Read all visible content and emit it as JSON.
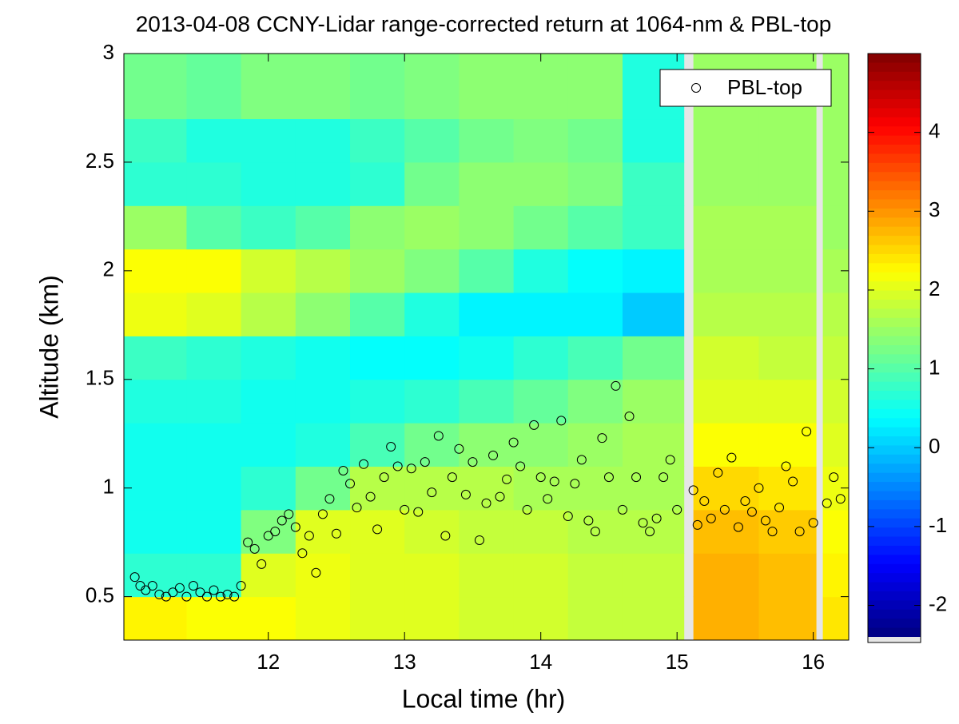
{
  "chart_data": {
    "type": "heatmap",
    "title": "2013-04-08 CCNY-Lidar range-corrected return at 1064-nm & PBL-top",
    "x_label": "Local time (hr)",
    "y_label": "Altitude (km)",
    "xlim": [
      10.94,
      16.26
    ],
    "ylim": [
      0.3,
      3
    ],
    "xticks": [
      12,
      13,
      14,
      15,
      16
    ],
    "yticks": [
      0.5,
      1,
      1.5,
      2,
      2.5,
      3
    ],
    "colormap": "jet",
    "clim": [
      -2.4,
      5
    ],
    "cticks": [
      -2,
      -1,
      0,
      1,
      2,
      3,
      4
    ],
    "legend_position": "upper right",
    "x_edges": [
      10.94,
      11.4,
      11.8,
      12.2,
      12.6,
      13.0,
      13.4,
      13.8,
      14.2,
      14.6,
      15.05,
      15.12,
      15.6,
      16.02,
      16.07,
      16.26
    ],
    "y_edges": [
      0.3,
      0.5,
      0.7,
      0.9,
      1.1,
      1.3,
      1.5,
      1.7,
      1.9,
      2.1,
      2.3,
      2.5,
      2.7,
      3.0
    ],
    "z": [
      [
        2.3,
        2.2,
        2.2,
        2.1,
        2.0,
        2.0,
        1.9,
        1.9,
        1.8,
        1.8,
        null,
        2.8,
        2.7,
        null,
        2.4
      ],
      [
        0.7,
        0.7,
        2.0,
        2.1,
        2.0,
        2.0,
        1.9,
        1.9,
        1.8,
        1.8,
        null,
        2.8,
        2.7,
        null,
        2.3
      ],
      [
        0.5,
        0.5,
        1.3,
        2.0,
        2.0,
        1.9,
        1.8,
        1.8,
        1.7,
        1.7,
        null,
        2.7,
        2.6,
        null,
        2.2
      ],
      [
        0.5,
        0.5,
        0.7,
        1.2,
        1.7,
        1.7,
        1.7,
        1.6,
        1.6,
        1.6,
        null,
        2.5,
        2.4,
        null,
        2.1
      ],
      [
        0.5,
        0.5,
        0.5,
        0.6,
        0.9,
        1.2,
        1.4,
        1.4,
        1.5,
        1.6,
        null,
        2.2,
        2.2,
        null,
        2.0
      ],
      [
        0.6,
        0.6,
        0.5,
        0.5,
        0.6,
        0.7,
        0.9,
        1.1,
        1.3,
        1.5,
        null,
        2.0,
        2.0,
        null,
        1.9
      ],
      [
        0.8,
        0.7,
        0.6,
        0.5,
        0.4,
        0.4,
        0.5,
        0.7,
        0.9,
        1.2,
        null,
        1.9,
        1.8,
        null,
        1.8
      ],
      [
        2.1,
        2.0,
        1.7,
        1.4,
        1.0,
        0.6,
        0.3,
        0.3,
        0.3,
        0.0,
        null,
        1.7,
        1.7,
        null,
        1.7
      ],
      [
        2.2,
        2.2,
        1.9,
        1.7,
        1.5,
        1.3,
        1.0,
        0.6,
        0.4,
        0.3,
        null,
        1.6,
        1.6,
        null,
        1.6
      ],
      [
        1.5,
        1.0,
        0.8,
        1.0,
        1.4,
        1.5,
        1.4,
        1.2,
        1.0,
        0.8,
        null,
        1.6,
        1.6,
        null,
        1.5
      ],
      [
        0.7,
        0.7,
        0.6,
        0.6,
        0.7,
        1.2,
        1.4,
        1.4,
        1.3,
        0.8,
        null,
        1.5,
        1.5,
        null,
        1.5
      ],
      [
        0.8,
        0.6,
        0.6,
        0.6,
        0.8,
        1.0,
        1.2,
        1.3,
        1.2,
        0.6,
        null,
        1.5,
        1.5,
        null,
        1.5
      ],
      [
        1.2,
        1.1,
        1.3,
        1.3,
        1.2,
        1.3,
        1.4,
        1.4,
        1.4,
        0.6,
        null,
        1.5,
        1.5,
        null,
        1.5
      ]
    ],
    "series": [
      {
        "name": "PBL-top",
        "color": "#000000",
        "x": [
          11.02,
          11.06,
          11.1,
          11.15,
          11.2,
          11.25,
          11.3,
          11.35,
          11.4,
          11.45,
          11.5,
          11.55,
          11.6,
          11.65,
          11.7,
          11.75,
          11.8,
          11.85,
          11.9,
          11.95,
          12.0,
          12.05,
          12.1,
          12.15,
          12.2,
          12.25,
          12.3,
          12.35,
          12.4,
          12.45,
          12.5,
          12.55,
          12.6,
          12.65,
          12.7,
          12.75,
          12.8,
          12.85,
          12.9,
          12.95,
          13.0,
          13.05,
          13.1,
          13.15,
          13.2,
          13.25,
          13.3,
          13.35,
          13.4,
          13.45,
          13.5,
          13.55,
          13.6,
          13.65,
          13.7,
          13.75,
          13.8,
          13.85,
          13.9,
          13.95,
          14.0,
          14.05,
          14.1,
          14.15,
          14.2,
          14.25,
          14.3,
          14.35,
          14.4,
          14.45,
          14.5,
          14.55,
          14.6,
          14.65,
          14.7,
          14.75,
          14.8,
          14.85,
          14.9,
          14.95,
          15.0,
          15.12,
          15.15,
          15.2,
          15.25,
          15.3,
          15.35,
          15.4,
          15.45,
          15.5,
          15.55,
          15.6,
          15.65,
          15.7,
          15.75,
          15.8,
          15.85,
          15.9,
          15.95,
          16.0,
          16.1,
          16.15,
          16.2
        ],
        "values": [
          0.59,
          0.55,
          0.53,
          0.55,
          0.51,
          0.5,
          0.52,
          0.54,
          0.5,
          0.55,
          0.52,
          0.5,
          0.53,
          0.5,
          0.51,
          0.5,
          0.55,
          0.75,
          0.72,
          0.65,
          0.78,
          0.8,
          0.85,
          0.88,
          0.82,
          0.7,
          0.78,
          0.61,
          0.88,
          0.95,
          0.79,
          1.08,
          1.02,
          0.91,
          1.11,
          0.96,
          0.81,
          1.05,
          1.19,
          1.1,
          0.9,
          1.09,
          0.89,
          1.12,
          0.98,
          1.24,
          0.78,
          1.05,
          1.18,
          0.97,
          1.12,
          0.76,
          0.93,
          1.15,
          0.96,
          1.04,
          1.21,
          1.1,
          0.9,
          1.29,
          1.05,
          0.95,
          1.03,
          1.31,
          0.87,
          1.02,
          1.13,
          0.85,
          0.8,
          1.23,
          1.05,
          1.47,
          0.9,
          1.33,
          1.05,
          0.84,
          0.8,
          0.86,
          1.05,
          1.13,
          0.9,
          0.99,
          0.83,
          0.94,
          0.86,
          1.07,
          0.9,
          1.14,
          0.82,
          0.94,
          0.89,
          1.0,
          0.85,
          0.8,
          0.91,
          1.1,
          1.03,
          0.8,
          1.26,
          0.84,
          0.93,
          1.05,
          0.95
        ]
      }
    ]
  }
}
